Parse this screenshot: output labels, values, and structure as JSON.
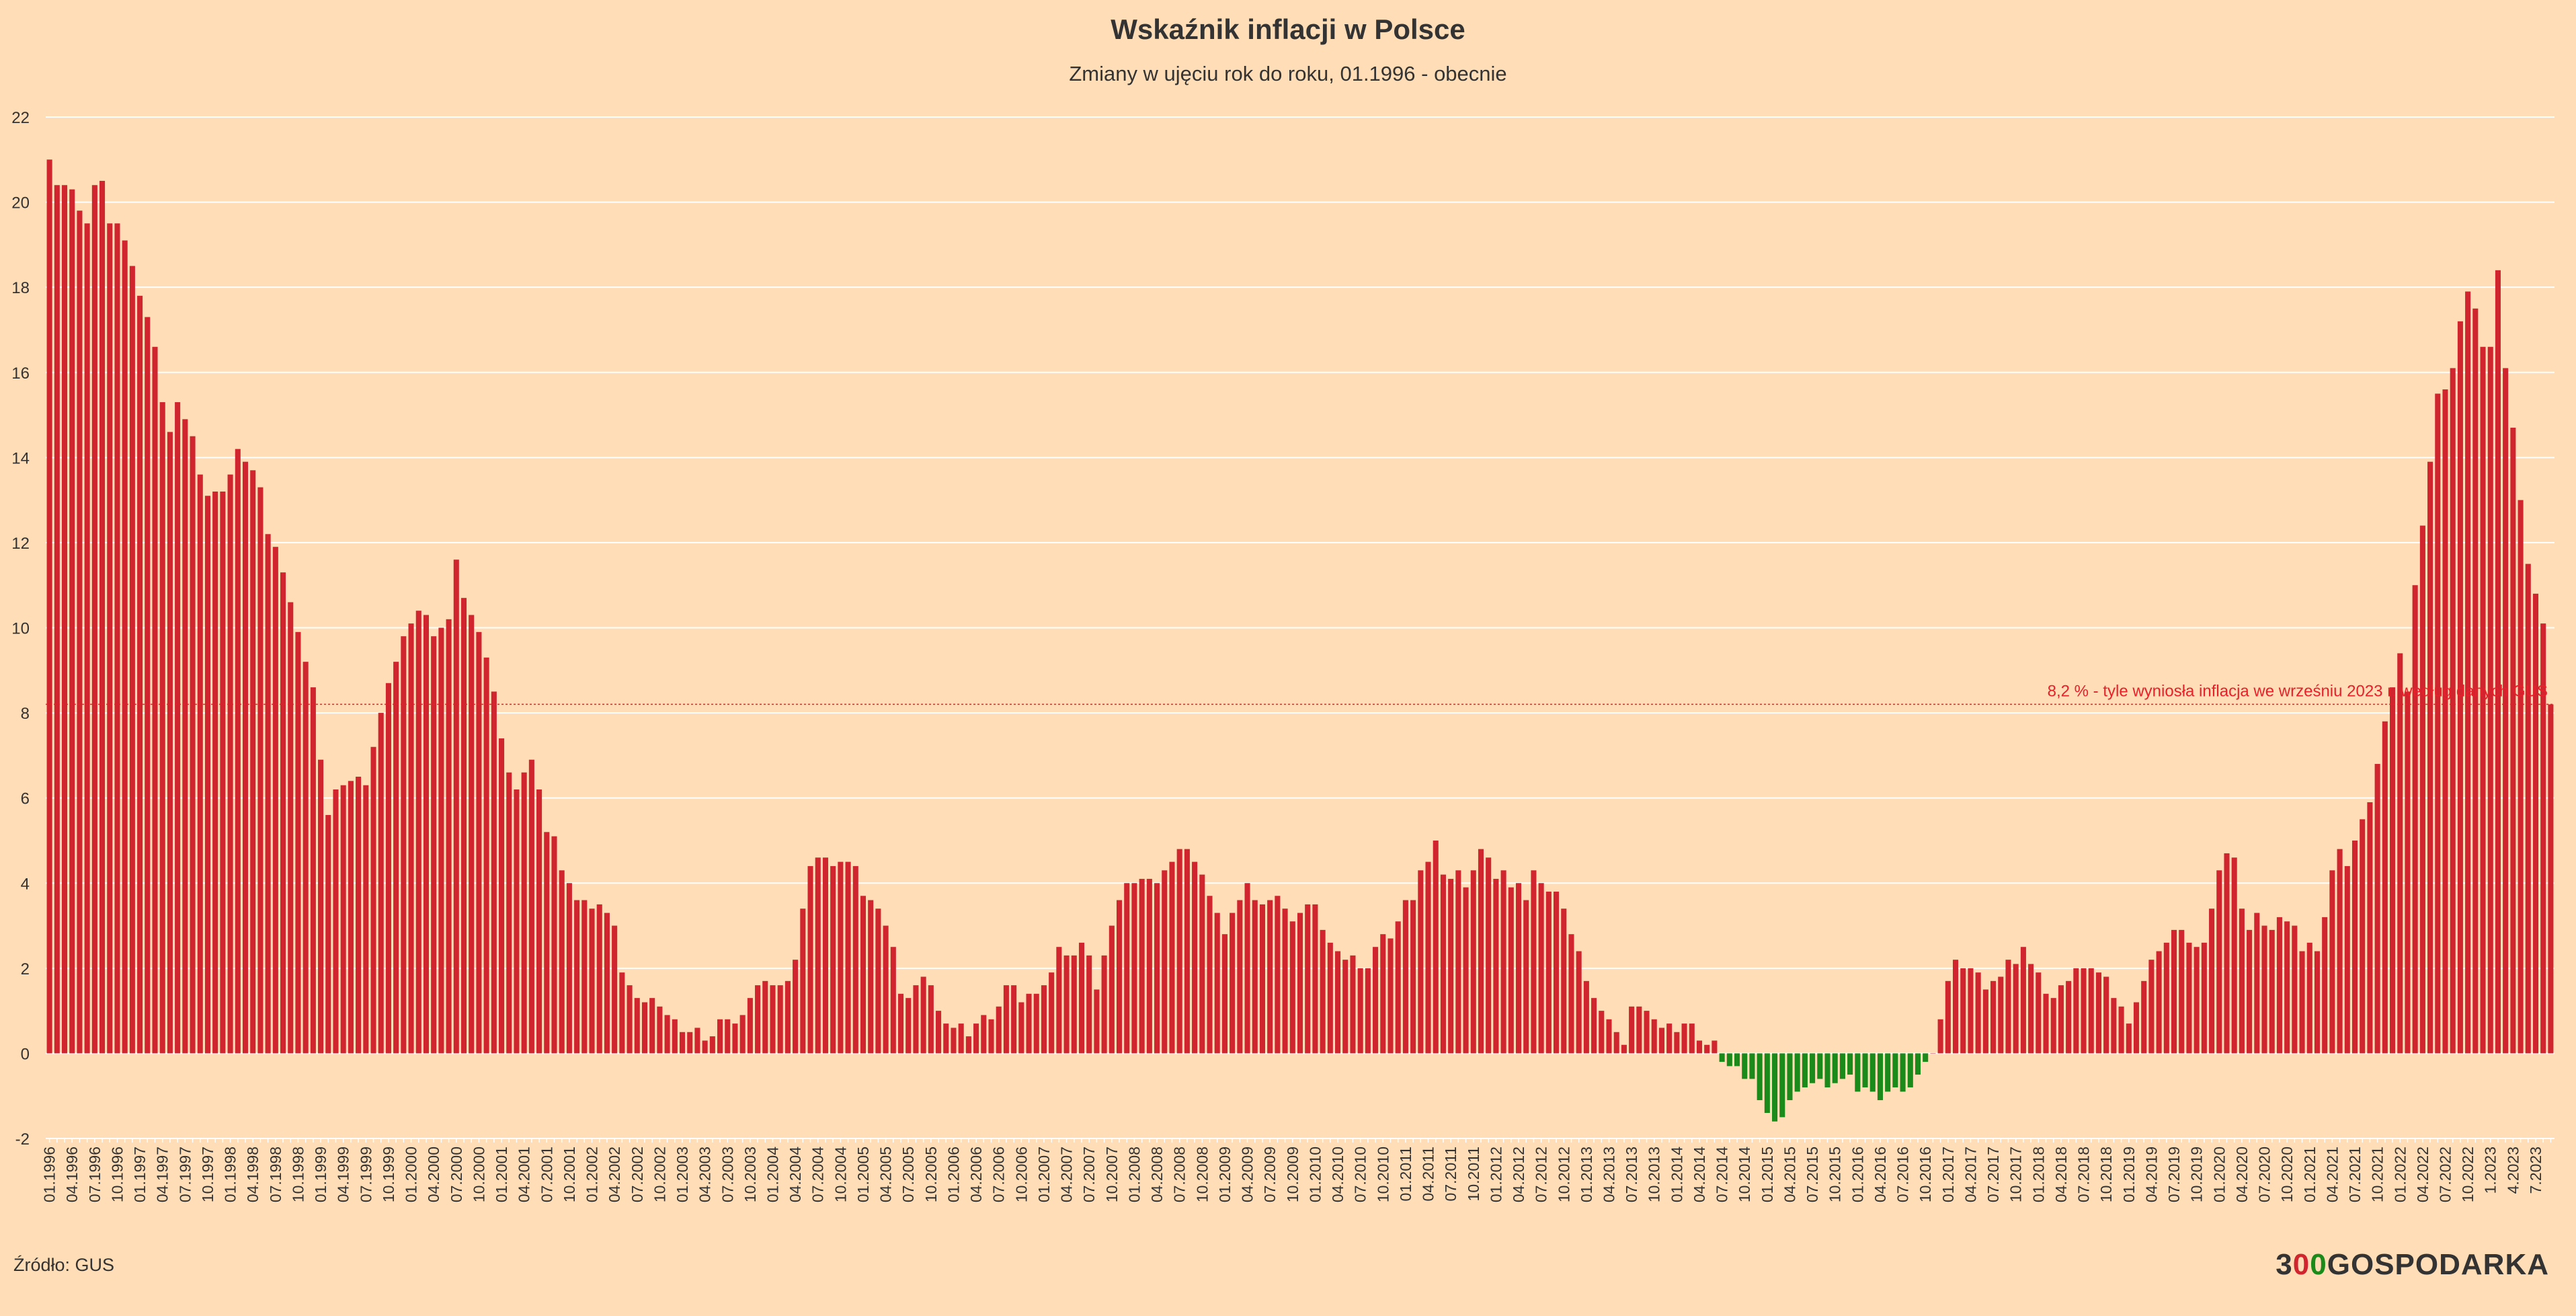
{
  "chart_data": {
    "type": "bar",
    "title": "Wskaźnik inflacji w Polsce",
    "subtitle": "Zmiany w ujęciu rok do roku, 01.1996 - obecnie",
    "ylim": [
      -2,
      22
    ],
    "yticks": [
      -2,
      0,
      2,
      4,
      6,
      8,
      10,
      12,
      14,
      16,
      18,
      20,
      22
    ],
    "grid": true,
    "legend": "none",
    "x_tick_labels": [
      "01.1996",
      "04.1996",
      "07.1996",
      "10.1996",
      "01.1997",
      "04.1997",
      "07.1997",
      "10.1997",
      "01.1998",
      "04.1998",
      "07.1998",
      "10.1998",
      "01.1999",
      "04.1999",
      "07.1999",
      "10.1999",
      "01.2000",
      "04.2000",
      "07.2000",
      "10.2000",
      "01.2001",
      "04.2001",
      "07.2001",
      "10.2001",
      "01.2002",
      "04.2002",
      "07.2002",
      "10.2002",
      "01.2003",
      "04.2003",
      "07.2003",
      "10.2003",
      "01.2004",
      "04.2004",
      "07.2004",
      "10.2004",
      "01.2005",
      "04.2005",
      "07.2005",
      "10.2005",
      "01.2006",
      "04.2006",
      "07.2006",
      "10.2006",
      "01.2007",
      "04.2007",
      "07.2007",
      "10.2007",
      "01.2008",
      "04.2008",
      "07.2008",
      "10.2008",
      "01.2009",
      "04.2009",
      "07.2009",
      "10.2009",
      "01.2010",
      "04.2010",
      "07.2010",
      "10.2010",
      "01.2011",
      "04.2011",
      "07.2011",
      "10.2011",
      "01.2012",
      "04.2012",
      "07.2012",
      "10.2012",
      "01.2013",
      "04.2013",
      "07.2013",
      "10.2013",
      "01.2014",
      "04.2014",
      "07.2014",
      "10.2014",
      "01.2015",
      "04.2015",
      "07.2015",
      "10.2015",
      "01.2016",
      "04.2016",
      "07.2016",
      "10.2016",
      "01.2017",
      "04.2017",
      "07.2017",
      "10.2017",
      "01.2018",
      "04.2018",
      "07.2018",
      "10.2018",
      "01.2019",
      "04.2019",
      "07.2019",
      "10.2019",
      "01.2020",
      "04.2020",
      "07.2020",
      "10.2020",
      "01.2021",
      "04.2021",
      "07.2021",
      "10.2021",
      "01.2022",
      "04.2022",
      "07.2022",
      "10.2022",
      "1.2023",
      "4.2023",
      "7.2023"
    ],
    "start_month": "01.1996",
    "values": [
      21.0,
      20.4,
      20.4,
      20.3,
      19.8,
      19.5,
      20.4,
      20.5,
      19.5,
      19.5,
      19.1,
      18.5,
      17.8,
      17.3,
      16.6,
      15.3,
      14.6,
      15.3,
      14.9,
      14.5,
      13.6,
      13.1,
      13.2,
      13.2,
      13.6,
      14.2,
      13.9,
      13.7,
      13.3,
      12.2,
      11.9,
      11.3,
      10.6,
      9.9,
      9.2,
      8.6,
      6.9,
      5.6,
      6.2,
      6.3,
      6.4,
      6.5,
      6.3,
      7.2,
      8.0,
      8.7,
      9.2,
      9.8,
      10.1,
      10.4,
      10.3,
      9.8,
      10.0,
      10.2,
      11.6,
      10.7,
      10.3,
      9.9,
      9.3,
      8.5,
      7.4,
      6.6,
      6.2,
      6.6,
      6.9,
      6.2,
      5.2,
      5.1,
      4.3,
      4.0,
      3.6,
      3.6,
      3.4,
      3.5,
      3.3,
      3.0,
      1.9,
      1.6,
      1.3,
      1.2,
      1.3,
      1.1,
      0.9,
      0.8,
      0.5,
      0.5,
      0.6,
      0.3,
      0.4,
      0.8,
      0.8,
      0.7,
      0.9,
      1.3,
      1.6,
      1.7,
      1.6,
      1.6,
      1.7,
      2.2,
      3.4,
      4.4,
      4.6,
      4.6,
      4.4,
      4.5,
      4.5,
      4.4,
      3.7,
      3.6,
      3.4,
      3.0,
      2.5,
      1.4,
      1.3,
      1.6,
      1.8,
      1.6,
      1.0,
      0.7,
      0.6,
      0.7,
      0.4,
      0.7,
      0.9,
      0.8,
      1.1,
      1.6,
      1.6,
      1.2,
      1.4,
      1.4,
      1.6,
      1.9,
      2.5,
      2.3,
      2.3,
      2.6,
      2.3,
      1.5,
      2.3,
      3.0,
      3.6,
      4.0,
      4.0,
      4.1,
      4.1,
      4.0,
      4.3,
      4.5,
      4.8,
      4.8,
      4.5,
      4.2,
      3.7,
      3.3,
      2.8,
      3.3,
      3.6,
      4.0,
      3.6,
      3.5,
      3.6,
      3.7,
      3.4,
      3.1,
      3.3,
      3.5,
      3.5,
      2.9,
      2.6,
      2.4,
      2.2,
      2.3,
      2.0,
      2.0,
      2.5,
      2.8,
      2.7,
      3.1,
      3.6,
      3.6,
      4.3,
      4.5,
      5.0,
      4.2,
      4.1,
      4.3,
      3.9,
      4.3,
      4.8,
      4.6,
      4.1,
      4.3,
      3.9,
      4.0,
      3.6,
      4.3,
      4.0,
      3.8,
      3.8,
      3.4,
      2.8,
      2.4,
      1.7,
      1.3,
      1.0,
      0.8,
      0.5,
      0.2,
      1.1,
      1.1,
      1.0,
      0.8,
      0.6,
      0.7,
      0.5,
      0.7,
      0.7,
      0.3,
      0.2,
      0.3,
      -0.2,
      -0.3,
      -0.3,
      -0.6,
      -0.6,
      -1.1,
      -1.4,
      -1.6,
      -1.5,
      -1.1,
      -0.9,
      -0.8,
      -0.7,
      -0.6,
      -0.8,
      -0.7,
      -0.6,
      -0.5,
      -0.9,
      -0.8,
      -0.9,
      -1.1,
      -0.9,
      -0.8,
      -0.9,
      -0.8,
      -0.5,
      -0.2,
      0.0,
      0.8,
      1.7,
      2.2,
      2.0,
      2.0,
      1.9,
      1.5,
      1.7,
      1.8,
      2.2,
      2.1,
      2.5,
      2.1,
      1.9,
      1.4,
      1.3,
      1.6,
      1.7,
      2.0,
      2.0,
      2.0,
      1.9,
      1.8,
      1.3,
      1.1,
      0.7,
      1.2,
      1.7,
      2.2,
      2.4,
      2.6,
      2.9,
      2.9,
      2.6,
      2.5,
      2.6,
      3.4,
      4.3,
      4.7,
      4.6,
      3.4,
      2.9,
      3.3,
      3.0,
      2.9,
      3.2,
      3.1,
      3.0,
      2.4,
      2.6,
      2.4,
      3.2,
      4.3,
      4.8,
      4.4,
      5.0,
      5.5,
      5.9,
      6.8,
      7.8,
      8.6,
      9.4,
      8.5,
      11.0,
      12.4,
      13.9,
      15.5,
      15.6,
      16.1,
      17.2,
      17.9,
      17.5,
      16.6,
      16.6,
      18.4,
      16.1,
      14.7,
      13.0,
      11.5,
      10.8,
      10.1,
      8.2
    ],
    "negative_color": "#1a8a1a",
    "positive_color": "#d0242f",
    "reference_line": {
      "value": 8.2,
      "label": "8,2 % - tyle wyniosła inflacja we wrześniu 2023 r. według danych GUS",
      "color": "#e8202a"
    }
  },
  "footer": {
    "source": "Źródło: GUS",
    "logo_part1": "3",
    "logo_part2": "0",
    "logo_part3": "0",
    "logo_part4": "GOSPODARKA"
  }
}
